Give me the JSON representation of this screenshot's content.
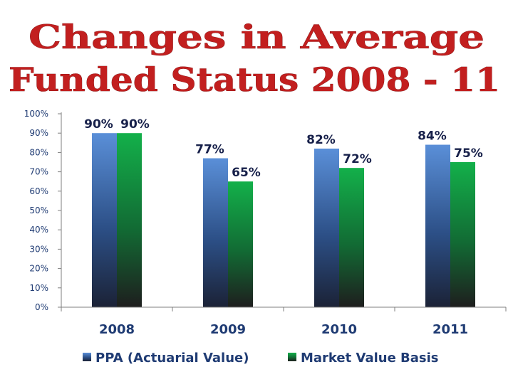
{
  "slide": {
    "title_line1": "Changes in Average",
    "title_line2": "Funded Status 2008 - 11"
  },
  "colors": {
    "title": "#c21f1f",
    "series1_top": "#5a8fd8",
    "series1_bottom": "#1b2236",
    "series2_top": "#13b04a",
    "series2_bottom": "#1e1e1e",
    "axis": "#7f7f7f"
  },
  "chart_data": {
    "type": "bar",
    "categories": [
      "2008",
      "2009",
      "2010",
      "2011"
    ],
    "series": [
      {
        "name": "PPA (Actuarial Value)",
        "values": [
          90,
          77,
          82,
          84
        ],
        "labels": [
          "90%",
          "77%",
          "82%",
          "84%"
        ]
      },
      {
        "name": "Market Value Basis",
        "values": [
          90,
          65,
          72,
          75
        ],
        "labels": [
          "90%",
          "65%",
          "72%",
          "75%"
        ]
      }
    ],
    "ylim": [
      0,
      100
    ],
    "yticks": [
      0,
      10,
      20,
      30,
      40,
      50,
      60,
      70,
      80,
      90,
      100
    ],
    "ytick_labels": [
      "0%",
      "10%",
      "20%",
      "30%",
      "40%",
      "50%",
      "60%",
      "70%",
      "80%",
      "90%",
      "100%"
    ],
    "legend_position": "bottom",
    "grid": false,
    "title": "Changes in Average Funded Status 2008 - 11"
  }
}
